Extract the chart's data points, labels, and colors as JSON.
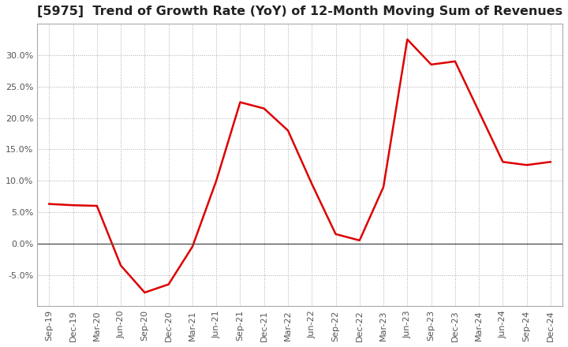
{
  "title": "[5975]  Trend of Growth Rate (YoY) of 12-Month Moving Sum of Revenues",
  "title_fontsize": 11.5,
  "line_color": "#dd0000",
  "background_color": "#ffffff",
  "x_labels": [
    "Sep-19",
    "Dec-19",
    "Mar-20",
    "Jun-20",
    "Sep-20",
    "Dec-20",
    "Mar-21",
    "Jun-21",
    "Sep-21",
    "Dec-21",
    "Mar-22",
    "Jun-22",
    "Sep-22",
    "Dec-22",
    "Mar-23",
    "Jun-23",
    "Sep-23",
    "Dec-23",
    "Mar-24",
    "Jun-24",
    "Sep-24",
    "Dec-24"
  ],
  "y_values": [
    6.3,
    6.1,
    6.0,
    -3.5,
    -7.8,
    -6.5,
    -0.5,
    10.0,
    22.5,
    21.5,
    18.0,
    9.5,
    1.5,
    0.5,
    9.0,
    32.5,
    28.5,
    29.0,
    21.0,
    13.0,
    12.5,
    13.0
  ],
  "ylim": [
    -10.0,
    35.0
  ],
  "yticks": [
    -5.0,
    0.0,
    5.0,
    10.0,
    15.0,
    20.0,
    25.0,
    30.0
  ],
  "grid_color": "#aaaaaa",
  "zero_line_color": "#555555",
  "tick_label_color": "#555555",
  "tick_fontsize": 8.0,
  "line_width": 1.8
}
